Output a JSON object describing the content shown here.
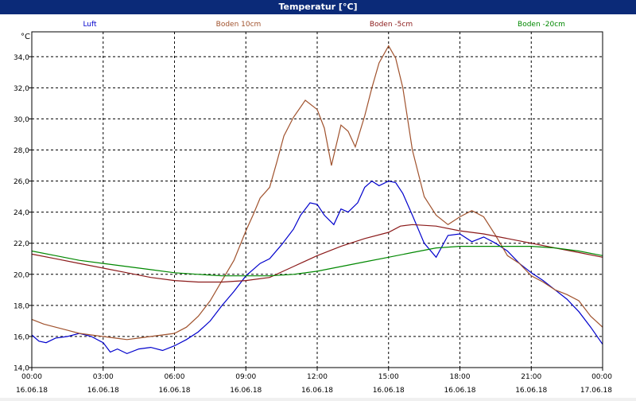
{
  "window": {
    "title": "Temperatur [°C]"
  },
  "chart_data": {
    "type": "line",
    "title": "Temperatur [°C]",
    "ylabel": "°C",
    "ylim": [
      14.0,
      35.6
    ],
    "yticks": [
      "14,0",
      "16,0",
      "18,0",
      "20,0",
      "22,0",
      "24,0",
      "26,0",
      "28,0",
      "30,0",
      "32,0",
      "34,0"
    ],
    "ytick_values": [
      14,
      16,
      18,
      20,
      22,
      24,
      26,
      28,
      30,
      32,
      34
    ],
    "xlim": [
      0,
      24
    ],
    "xticks": [
      {
        "time": "00:00",
        "date": "16.06.18"
      },
      {
        "time": "03:00",
        "date": "16.06.18"
      },
      {
        "time": "06:00",
        "date": "16.06.18"
      },
      {
        "time": "09:00",
        "date": "16.06.18"
      },
      {
        "time": "12:00",
        "date": "16.06.18"
      },
      {
        "time": "15:00",
        "date": "16.06.18"
      },
      {
        "time": "18:00",
        "date": "16.06.18"
      },
      {
        "time": "21:00",
        "date": "16.06.18"
      },
      {
        "time": "00:00",
        "date": "17.06.18"
      }
    ],
    "grid": true,
    "legend_position": "top",
    "series": [
      {
        "name": "Luft",
        "color": "#0000cc",
        "x": [
          0,
          0.3,
          0.6,
          1,
          1.5,
          2,
          2.5,
          3,
          3.3,
          3.6,
          4,
          4.5,
          5,
          5.5,
          6,
          6.5,
          7,
          7.5,
          8,
          8.5,
          9,
          9.3,
          9.6,
          10,
          10.5,
          11,
          11.3,
          11.7,
          12,
          12.3,
          12.7,
          13,
          13.3,
          13.7,
          14,
          14.3,
          14.6,
          15,
          15.3,
          15.6,
          16,
          16.5,
          17,
          17.5,
          18,
          18.5,
          19,
          19.5,
          20,
          20.5,
          21,
          21.5,
          22,
          22.5,
          23,
          23.5,
          24
        ],
        "y": [
          16.1,
          15.7,
          15.6,
          15.9,
          16.0,
          16.2,
          16.0,
          15.6,
          15.0,
          15.2,
          14.9,
          15.2,
          15.3,
          15.1,
          15.4,
          15.8,
          16.3,
          17.0,
          18.0,
          18.9,
          19.9,
          20.3,
          20.7,
          21.0,
          21.9,
          22.9,
          23.8,
          24.6,
          24.5,
          23.8,
          23.2,
          24.2,
          24.0,
          24.6,
          25.6,
          26.0,
          25.7,
          26.0,
          25.9,
          25.2,
          23.8,
          22.0,
          21.1,
          22.5,
          22.6,
          22.1,
          22.4,
          22.0,
          21.5,
          20.7,
          20.1,
          19.6,
          19.0,
          18.4,
          17.6,
          16.6,
          15.5
        ]
      },
      {
        "name": "Boden 10cm",
        "color": "#a0522d",
        "x": [
          0,
          0.5,
          1,
          1.5,
          2,
          2.5,
          3,
          3.5,
          4,
          4.5,
          5,
          5.5,
          6,
          6.5,
          7,
          7.5,
          8,
          8.5,
          9,
          9.3,
          9.6,
          10,
          10.3,
          10.6,
          11,
          11.5,
          12,
          12.3,
          12.6,
          13,
          13.3,
          13.6,
          14,
          14.3,
          14.6,
          15,
          15.3,
          15.6,
          16,
          16.5,
          17,
          17.5,
          18,
          18.5,
          19,
          19.5,
          20,
          20.5,
          21,
          21.5,
          22,
          22.5,
          23,
          23.5,
          24
        ],
        "y": [
          17.1,
          16.8,
          16.6,
          16.4,
          16.2,
          16.1,
          16.0,
          15.9,
          15.8,
          15.9,
          16.0,
          16.1,
          16.2,
          16.6,
          17.3,
          18.3,
          19.6,
          20.9,
          22.8,
          23.8,
          24.9,
          25.6,
          27.2,
          28.9,
          30.1,
          31.2,
          30.6,
          29.4,
          27.0,
          29.6,
          29.2,
          28.2,
          30.2,
          32.0,
          33.6,
          34.7,
          33.9,
          32.0,
          28.0,
          25.0,
          23.8,
          23.2,
          23.7,
          24.1,
          23.7,
          22.5,
          21.2,
          20.7,
          19.9,
          19.5,
          19.0,
          18.7,
          18.3,
          17.3,
          16.6
        ]
      },
      {
        "name": "Boden -5cm",
        "color": "#8b1a1a",
        "x": [
          0,
          1,
          2,
          3,
          4,
          5,
          6,
          7,
          8,
          9,
          10,
          11,
          12,
          13,
          14,
          15,
          15.5,
          16,
          17,
          18,
          19,
          20,
          21,
          22,
          23,
          24
        ],
        "y": [
          21.3,
          21.0,
          20.7,
          20.4,
          20.1,
          19.8,
          19.6,
          19.5,
          19.5,
          19.6,
          19.8,
          20.5,
          21.2,
          21.8,
          22.3,
          22.7,
          23.1,
          23.2,
          23.1,
          22.8,
          22.6,
          22.3,
          22.0,
          21.7,
          21.4,
          21.1
        ]
      },
      {
        "name": "Boden -20cm",
        "color": "#008800",
        "x": [
          0,
          1,
          2,
          3,
          4,
          5,
          6,
          7,
          8,
          9,
          10,
          11,
          12,
          13,
          14,
          15,
          16,
          17,
          18,
          19,
          20,
          21,
          22,
          23,
          24
        ],
        "y": [
          21.5,
          21.2,
          20.9,
          20.7,
          20.5,
          20.3,
          20.1,
          20.0,
          19.9,
          19.9,
          19.9,
          20.0,
          20.2,
          20.5,
          20.8,
          21.1,
          21.4,
          21.7,
          21.8,
          21.8,
          21.8,
          21.8,
          21.7,
          21.5,
          21.2
        ]
      }
    ]
  }
}
